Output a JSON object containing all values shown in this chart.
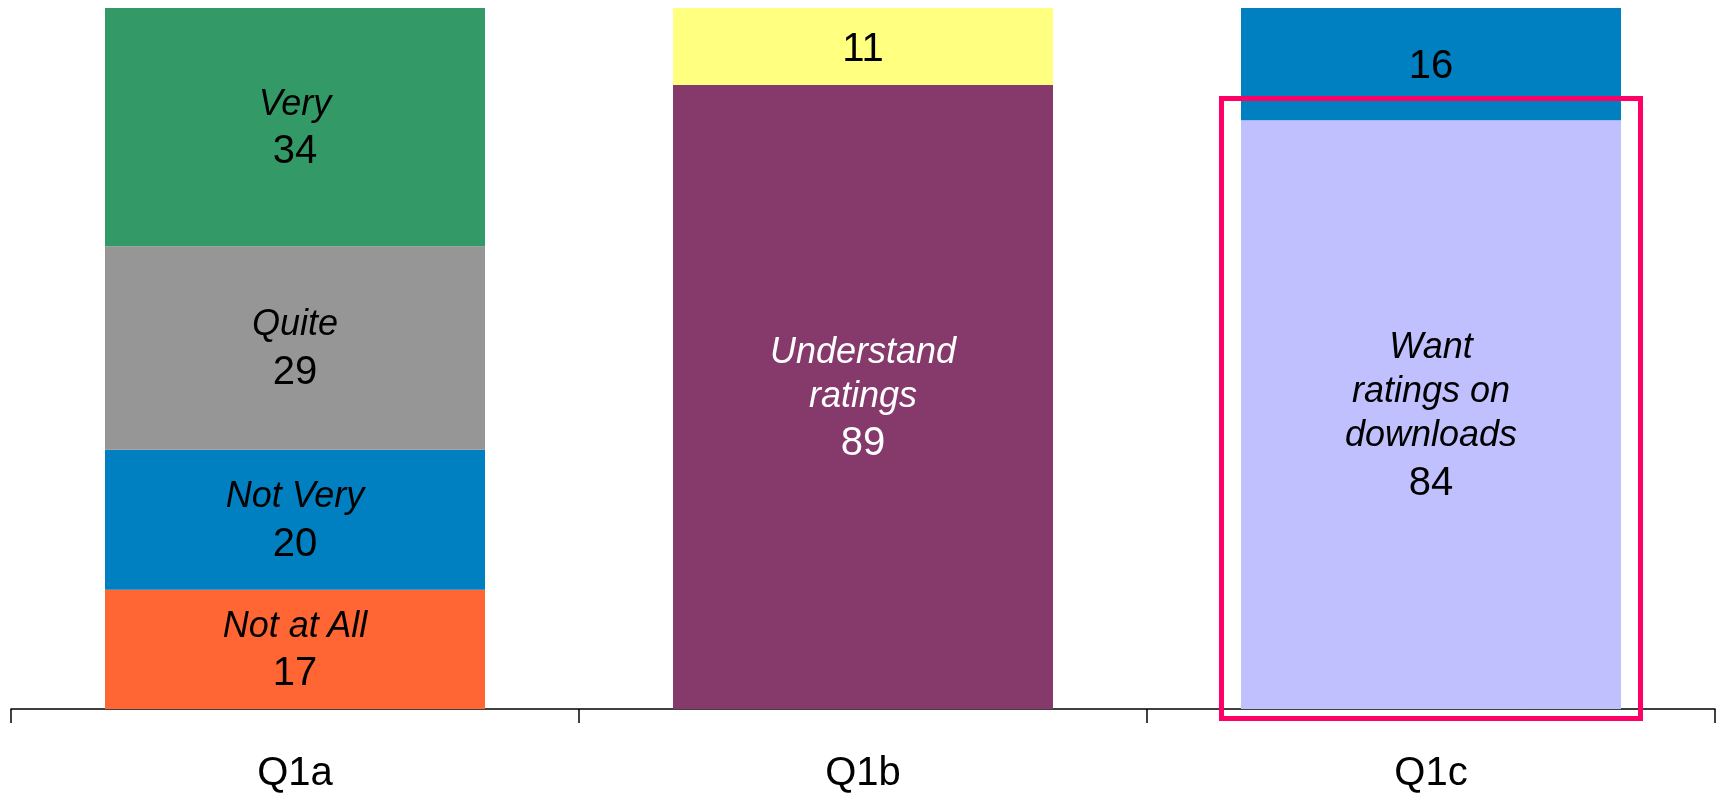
{
  "chart_data": {
    "type": "bar",
    "stacked": true,
    "data_labels": true,
    "legend": false,
    "grid": false,
    "categories": [
      "Q1a",
      "Q1b",
      "Q1c"
    ],
    "series": [
      {
        "name": "Not at All",
        "color": "#ff6633",
        "values": [
          17,
          null,
          null
        ]
      },
      {
        "name": "Not Very",
        "color": "#0080c0",
        "values": [
          20,
          null,
          null
        ]
      },
      {
        "name": "Quite",
        "color": "#969696",
        "values": [
          29,
          null,
          null
        ]
      },
      {
        "name": "Very",
        "color": "#339966",
        "values": [
          34,
          null,
          null
        ]
      },
      {
        "name": "Understand ratings",
        "color": "#853a6b",
        "values": [
          null,
          89,
          null
        ]
      },
      {
        "color": "#ffff80",
        "values": [
          null,
          11,
          null
        ]
      },
      {
        "name": "Want ratings on downloads",
        "color": "#c0c0ff",
        "values": [
          null,
          null,
          84
        ]
      },
      {
        "color": "#0080c0",
        "values": [
          null,
          null,
          16
        ]
      }
    ]
  }
}
